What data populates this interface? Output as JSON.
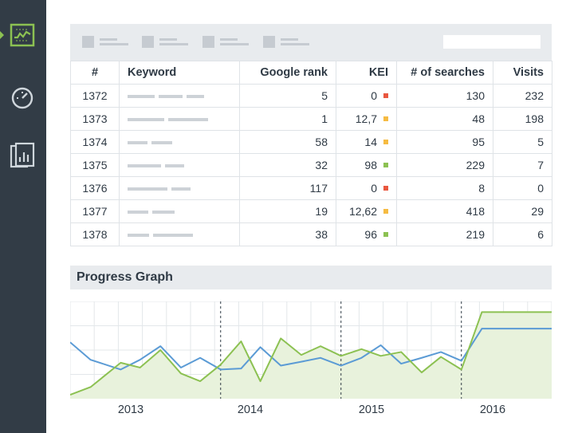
{
  "sidebar": {
    "items": [
      {
        "icon": "chart-line-icon",
        "active": true
      },
      {
        "icon": "speedometer-icon",
        "active": false
      },
      {
        "icon": "report-document-icon",
        "active": false
      }
    ],
    "active_color": "#8cc152"
  },
  "table": {
    "headers": [
      "#",
      "Keyword",
      "Google rank",
      "KEI",
      "# of searches",
      "Visits"
    ],
    "rows": [
      {
        "id": "1372",
        "rank": "5",
        "kei": "0",
        "kei_status": "red",
        "searches": "130",
        "visits": "232"
      },
      {
        "id": "1373",
        "rank": "1",
        "kei": "12,7",
        "kei_status": "orange",
        "searches": "48",
        "visits": "198"
      },
      {
        "id": "1374",
        "rank": "58",
        "kei": "14",
        "kei_status": "orange",
        "searches": "95",
        "visits": "5"
      },
      {
        "id": "1375",
        "rank": "32",
        "kei": "98",
        "kei_status": "green",
        "searches": "229",
        "visits": "7"
      },
      {
        "id": "1376",
        "rank": "117",
        "kei": "0",
        "kei_status": "red",
        "searches": "8",
        "visits": "0"
      },
      {
        "id": "1377",
        "rank": "19",
        "kei": "12,62",
        "kei_status": "orange",
        "searches": "418",
        "visits": "29"
      },
      {
        "id": "1378",
        "rank": "38",
        "kei": "96",
        "kei_status": "green",
        "searches": "219",
        "visits": "6"
      }
    ],
    "status_colors": {
      "red": "#e9573f",
      "orange": "#f6bb42",
      "green": "#8cc152"
    }
  },
  "progress_graph": {
    "title": "Progress Graph"
  },
  "chart_data": {
    "type": "line",
    "x": [
      2012.5,
      2012.67,
      2012.92,
      2013.08,
      2013.25,
      2013.42,
      2013.58,
      2013.75,
      2013.92,
      2014.08,
      2014.25,
      2014.42,
      2014.58,
      2014.75,
      2014.92,
      2015.08,
      2015.25,
      2015.42,
      2015.58,
      2015.75,
      2015.92,
      2016.08,
      2016.25,
      2016.42,
      2016.5
    ],
    "xticks": [
      "2013",
      "2014",
      "2015",
      "2016"
    ],
    "series": [
      {
        "color": "#5b9bd5",
        "values": [
          58,
          40,
          30,
          40,
          54,
          32,
          42,
          30,
          31,
          53,
          34,
          38,
          42,
          34,
          42,
          55,
          36,
          42,
          48,
          39,
          72,
          72,
          72,
          72,
          72
        ]
      },
      {
        "color": "#8cc152",
        "values": [
          4,
          12,
          37,
          32,
          50,
          26,
          18,
          35,
          59,
          18,
          62,
          45,
          54,
          44,
          51,
          44,
          48,
          27,
          43,
          30,
          89,
          89,
          89,
          89,
          89
        ]
      }
    ],
    "ylim": [
      0,
      100
    ],
    "grid": true,
    "fill": "#e8f2dc",
    "dashed_separators": true
  }
}
